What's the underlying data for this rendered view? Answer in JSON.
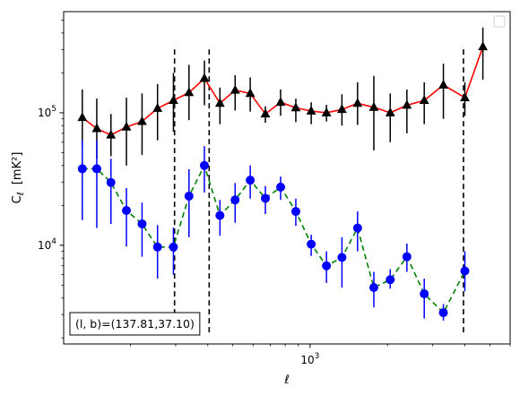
{
  "chart_data": {
    "type": "scatter",
    "xscale": "log",
    "yscale": "log",
    "xlim": [
      110,
      6000
    ],
    "ylim": [
      1800,
      580000
    ],
    "xlabel": "ℓ",
    "ylabel_main": "C",
    "ylabel_sub": "ℓ",
    "ylabel_unit": "[mK²]",
    "x_ticks": [
      {
        "value": 1000,
        "base": "10",
        "exp": "3"
      }
    ],
    "y_ticks": [
      {
        "value": 10000,
        "base": "10",
        "exp": "4"
      },
      {
        "value": 100000,
        "base": "10",
        "exp": "5"
      }
    ],
    "annotation": "(l, b)=(137.81,37.10)",
    "vlines": [
      {
        "x": 297,
        "ymin": 2200,
        "ymax": 320000
      },
      {
        "x": 405,
        "ymin": 2200,
        "ymax": 320000
      },
      {
        "x": 3950,
        "ymin": 2200,
        "ymax": 320000
      }
    ],
    "legend": {
      "position": "upper right",
      "entries": []
    },
    "series": [
      {
        "marker": "triangle",
        "marker_color": "#000000",
        "line_color": "#ff0000",
        "line_style": "solid",
        "error_color": "#000000",
        "points": [
          {
            "x": 130,
            "y": 92000,
            "lo": 55000,
            "hi": 150000
          },
          {
            "x": 148,
            "y": 76000,
            "lo": 45000,
            "hi": 128000
          },
          {
            "x": 168,
            "y": 68000,
            "lo": 47000,
            "hi": 98000
          },
          {
            "x": 193,
            "y": 78000,
            "lo": 40000,
            "hi": 130000
          },
          {
            "x": 222,
            "y": 86000,
            "lo": 48000,
            "hi": 140000
          },
          {
            "x": 255,
            "y": 108000,
            "lo": 62000,
            "hi": 165000
          },
          {
            "x": 294,
            "y": 124000,
            "lo": 72000,
            "hi": 200000
          },
          {
            "x": 338,
            "y": 142000,
            "lo": 88000,
            "hi": 230000
          },
          {
            "x": 388,
            "y": 182000,
            "lo": 114000,
            "hi": 248000
          },
          {
            "x": 446,
            "y": 118000,
            "lo": 82000,
            "hi": 155000
          },
          {
            "x": 511,
            "y": 148000,
            "lo": 104000,
            "hi": 192000
          },
          {
            "x": 585,
            "y": 140000,
            "lo": 102000,
            "hi": 185000
          },
          {
            "x": 670,
            "y": 98000,
            "lo": 84000,
            "hi": 112000
          },
          {
            "x": 768,
            "y": 120000,
            "lo": 95000,
            "hi": 150000
          },
          {
            "x": 880,
            "y": 109000,
            "lo": 85000,
            "hi": 128000
          },
          {
            "x": 1010,
            "y": 103000,
            "lo": 82000,
            "hi": 120000
          },
          {
            "x": 1158,
            "y": 100000,
            "lo": 86000,
            "hi": 115000
          },
          {
            "x": 1330,
            "y": 106000,
            "lo": 80000,
            "hi": 138000
          },
          {
            "x": 1530,
            "y": 118000,
            "lo": 81000,
            "hi": 170000
          },
          {
            "x": 1770,
            "y": 110000,
            "lo": 52000,
            "hi": 190000
          },
          {
            "x": 2050,
            "y": 100000,
            "lo": 60000,
            "hi": 140000
          },
          {
            "x": 2380,
            "y": 114000,
            "lo": 70000,
            "hi": 150000
          },
          {
            "x": 2780,
            "y": 124000,
            "lo": 82000,
            "hi": 170000
          },
          {
            "x": 3300,
            "y": 162000,
            "lo": 90000,
            "hi": 235000
          },
          {
            "x": 4000,
            "y": 130000,
            "lo": 95000,
            "hi": 170000
          },
          {
            "x": 4700,
            "y": 315000,
            "lo": 178000,
            "hi": 440000
          }
        ]
      },
      {
        "marker": "circle",
        "marker_color": "#0000ff",
        "line_color": "#008000",
        "line_style": "dashed",
        "error_color": "#0000ff",
        "points": [
          {
            "x": 130,
            "y": 37800,
            "lo": 15500,
            "hi": 62000
          },
          {
            "x": 148,
            "y": 37800,
            "lo": 13500,
            "hi": 62000
          },
          {
            "x": 168,
            "y": 29800,
            "lo": 14500,
            "hi": 45000
          },
          {
            "x": 193,
            "y": 18300,
            "lo": 9800,
            "hi": 27000
          },
          {
            "x": 222,
            "y": 14500,
            "lo": 8200,
            "hi": 21000
          },
          {
            "x": 255,
            "y": 9700,
            "lo": 5600,
            "hi": 14200
          },
          {
            "x": 294,
            "y": 9700,
            "lo": 6000,
            "hi": 13600
          },
          {
            "x": 338,
            "y": 23500,
            "lo": 11500,
            "hi": 37500
          },
          {
            "x": 388,
            "y": 40000,
            "lo": 25000,
            "hi": 56000
          },
          {
            "x": 446,
            "y": 16800,
            "lo": 11800,
            "hi": 22000
          },
          {
            "x": 511,
            "y": 22000,
            "lo": 14800,
            "hi": 29500
          },
          {
            "x": 585,
            "y": 31000,
            "lo": 22500,
            "hi": 40000
          },
          {
            "x": 670,
            "y": 22600,
            "lo": 17200,
            "hi": 28000
          },
          {
            "x": 768,
            "y": 27500,
            "lo": 22000,
            "hi": 33000
          },
          {
            "x": 880,
            "y": 18000,
            "lo": 14000,
            "hi": 22500
          },
          {
            "x": 1010,
            "y": 10200,
            "lo": 8300,
            "hi": 12000
          },
          {
            "x": 1158,
            "y": 7000,
            "lo": 5200,
            "hi": 9000
          },
          {
            "x": 1330,
            "y": 8100,
            "lo": 4800,
            "hi": 11500
          },
          {
            "x": 1530,
            "y": 13500,
            "lo": 9000,
            "hi": 18000
          },
          {
            "x": 1770,
            "y": 4800,
            "lo": 3400,
            "hi": 6300
          },
          {
            "x": 2050,
            "y": 5500,
            "lo": 4700,
            "hi": 6600
          },
          {
            "x": 2380,
            "y": 8200,
            "lo": 6300,
            "hi": 10300
          },
          {
            "x": 2780,
            "y": 4300,
            "lo": 2800,
            "hi": 5600
          },
          {
            "x": 3300,
            "y": 3100,
            "lo": 2700,
            "hi": 3600
          },
          {
            "x": 4000,
            "y": 6400,
            "lo": 4500,
            "hi": 9000
          }
        ]
      }
    ]
  }
}
